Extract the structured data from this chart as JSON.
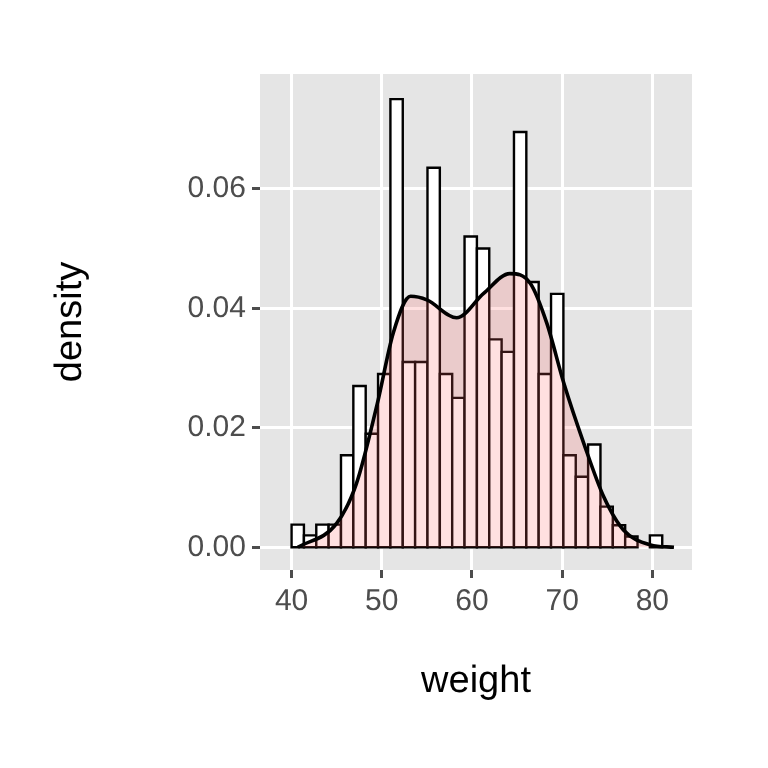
{
  "chart_data": {
    "type": "histogram",
    "xlabel": "weight",
    "ylabel": "density",
    "xlim": [
      36.5,
      84.4
    ],
    "ylim": [
      -0.0038,
      0.0792
    ],
    "xticks": [
      40,
      50,
      60,
      70,
      80
    ],
    "yticks": [
      {
        "value": 0,
        "label": "0.00"
      },
      {
        "value": 0.02,
        "label": "0.02"
      },
      {
        "value": 0.04,
        "label": "0.04"
      },
      {
        "value": 0.06,
        "label": "0.06"
      }
    ],
    "grid": true,
    "legend": false,
    "series": [
      {
        "type": "histogram",
        "color": "#ffffff",
        "bins": [
          40.0,
          41.37,
          42.74,
          44.11,
          45.48,
          46.85,
          48.22,
          49.59,
          50.96,
          52.33,
          53.7,
          55.07,
          56.44,
          57.81,
          59.18,
          60.55,
          61.92,
          63.29,
          64.66,
          66.03,
          67.4,
          68.77,
          70.14,
          71.51,
          72.88,
          74.25,
          75.62,
          76.99,
          78.36,
          79.73,
          81.1
        ],
        "values": [
          0.0038,
          0.002,
          0.0038,
          0.0038,
          0.0154,
          0.027,
          0.019,
          0.029,
          0.075,
          0.031,
          0.031,
          0.0635,
          0.029,
          0.025,
          0.052,
          0.05,
          0.0348,
          0.0327,
          0.0695,
          0.0444,
          0.029,
          0.0424,
          0.0154,
          0.0118,
          0.0172,
          0.0068,
          0.0037,
          0.0018,
          0,
          0.002
        ]
      },
      {
        "type": "area",
        "color": "#ff6666",
        "x": [
          40.7,
          45,
          47.2,
          49.5,
          51.3,
          53.2,
          55,
          58.3,
          61.3,
          64.2,
          66.5,
          68.3,
          70.2,
          72.4,
          74.6,
          76.8,
          79.8,
          82.4
        ],
        "values": [
          0,
          0.004,
          0.0107,
          0.024,
          0.036,
          0.042,
          0.0414,
          0.0384,
          0.0425,
          0.0458,
          0.0441,
          0.0375,
          0.0274,
          0.0174,
          0.0085,
          0.0029,
          0.0004,
          0
        ]
      }
    ]
  }
}
